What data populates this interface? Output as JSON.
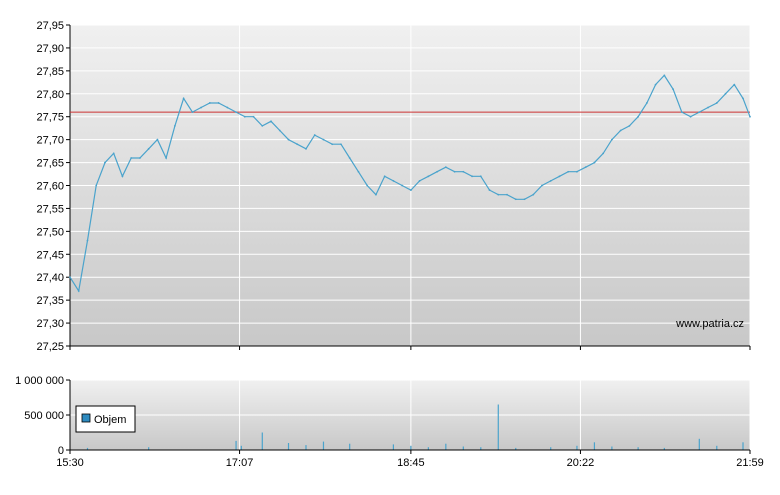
{
  "chart_data": [
    {
      "type": "line",
      "title": "",
      "xlabel": "",
      "ylabel": "",
      "ylim": [
        27.25,
        27.95
      ],
      "xlim": [
        "15:30",
        "21:59"
      ],
      "y_ticks": [
        "27,25",
        "27,30",
        "27,35",
        "27,40",
        "27,45",
        "27,50",
        "27,55",
        "27,60",
        "27,65",
        "27,70",
        "27,75",
        "27,80",
        "27,85",
        "27,90",
        "27,95"
      ],
      "x_ticks": [
        "15:30",
        "17:07",
        "18:45",
        "20:22",
        "21:59"
      ],
      "grid": true,
      "reference_line": 27.76,
      "reference_line_color": "#cc3333",
      "line_color": "#4aa3cc",
      "watermark": "www.patria.cz",
      "series": [
        {
          "x": [
            "15:30",
            "15:35",
            "15:40",
            "15:45",
            "15:50",
            "15:55",
            "16:00",
            "16:05",
            "16:10",
            "16:15",
            "16:20",
            "16:25",
            "16:30",
            "16:35",
            "16:40",
            "16:45",
            "16:50",
            "16:55",
            "17:00",
            "17:05",
            "17:10",
            "17:15",
            "17:20",
            "17:25",
            "17:30",
            "17:35",
            "17:40",
            "17:45",
            "17:50",
            "17:55",
            "18:00",
            "18:05",
            "18:10",
            "18:15",
            "18:20",
            "18:25",
            "18:30",
            "18:35",
            "18:40",
            "18:45",
            "18:50",
            "18:55",
            "19:00",
            "19:05",
            "19:10",
            "19:15",
            "19:20",
            "19:25",
            "19:30",
            "19:35",
            "19:40",
            "19:45",
            "19:50",
            "19:55",
            "20:00",
            "20:05",
            "20:10",
            "20:15",
            "20:20",
            "20:25",
            "20:30",
            "20:35",
            "20:40",
            "20:45",
            "20:50",
            "20:55",
            "21:00",
            "21:05",
            "21:10",
            "21:15",
            "21:20",
            "21:25",
            "21:30",
            "21:35",
            "21:40",
            "21:45",
            "21:50",
            "21:55",
            "21:59"
          ],
          "y": [
            27.4,
            27.37,
            27.48,
            27.6,
            27.65,
            27.67,
            27.62,
            27.66,
            27.66,
            27.68,
            27.7,
            27.66,
            27.73,
            27.79,
            27.76,
            27.77,
            27.78,
            27.78,
            27.77,
            27.76,
            27.75,
            27.75,
            27.73,
            27.74,
            27.72,
            27.7,
            27.69,
            27.68,
            27.71,
            27.7,
            27.69,
            27.69,
            27.66,
            27.63,
            27.6,
            27.58,
            27.62,
            27.61,
            27.6,
            27.59,
            27.61,
            27.62,
            27.63,
            27.64,
            27.63,
            27.63,
            27.62,
            27.62,
            27.59,
            27.58,
            27.58,
            27.57,
            27.57,
            27.58,
            27.6,
            27.61,
            27.62,
            27.63,
            27.63,
            27.64,
            27.65,
            27.67,
            27.7,
            27.72,
            27.73,
            27.75,
            27.78,
            27.82,
            27.84,
            27.81,
            27.76,
            27.75,
            27.76,
            27.77,
            27.78,
            27.8,
            27.82,
            27.79,
            27.75
          ]
        }
      ]
    },
    {
      "type": "bar",
      "title": "",
      "ylim": [
        0,
        1000000
      ],
      "y_ticks": [
        "0",
        "500 000",
        "1 000 000"
      ],
      "x_ticks": [
        "15:30",
        "17:07",
        "18:45",
        "20:22",
        "21:59"
      ],
      "legend": "Objem",
      "legend_color": "#2e8bc0",
      "bar_color": "#4aa3cc",
      "series": [
        {
          "name": "Objem",
          "x": [
            "15:40",
            "16:15",
            "17:05",
            "17:08",
            "17:20",
            "17:35",
            "17:45",
            "17:55",
            "18:10",
            "18:35",
            "18:45",
            "18:55",
            "19:05",
            "19:15",
            "19:25",
            "19:35",
            "19:45",
            "20:05",
            "20:20",
            "20:30",
            "20:40",
            "20:55",
            "21:10",
            "21:30",
            "21:40",
            "21:55"
          ],
          "values": [
            30000,
            40000,
            130000,
            60000,
            250000,
            100000,
            70000,
            120000,
            90000,
            80000,
            60000,
            40000,
            90000,
            50000,
            40000,
            650000,
            30000,
            40000,
            60000,
            110000,
            50000,
            40000,
            30000,
            160000,
            60000,
            110000
          ]
        }
      ]
    }
  ]
}
